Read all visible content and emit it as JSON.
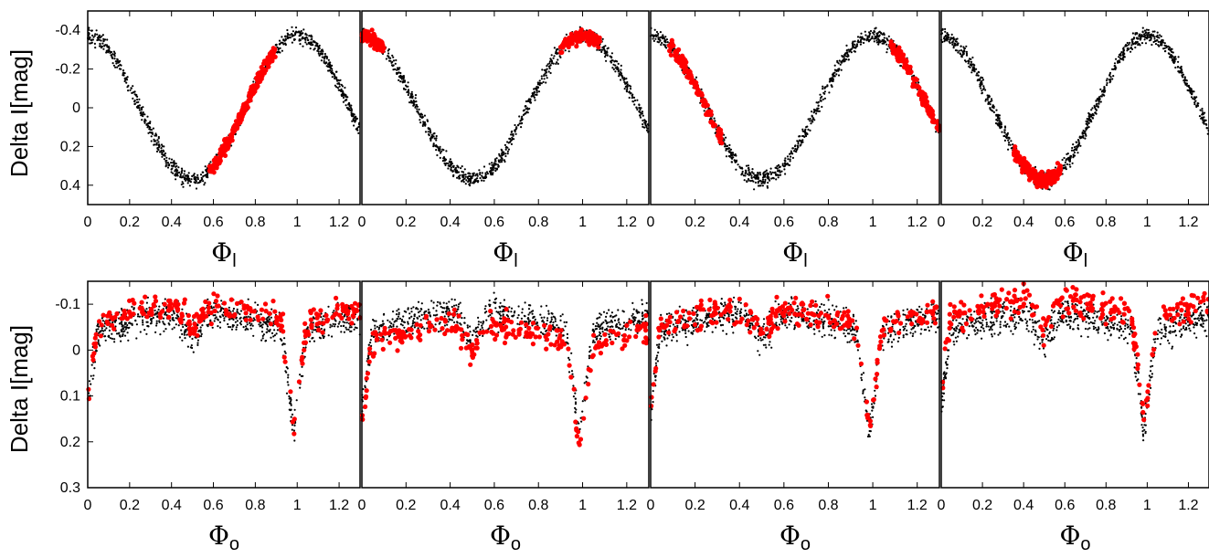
{
  "figure": {
    "rows": [
      {
        "ylabel": "Delta I[mag]",
        "xlabel_symbol": "Φ",
        "xlabel_subscript": "l"
      },
      {
        "ylabel": "Delta I[mag]",
        "xlabel_symbol": "Φ",
        "xlabel_subscript": "o"
      }
    ]
  },
  "colors": {
    "background_points": "#000000",
    "highlight_points": "#ff0000"
  },
  "chart_data": [
    {
      "type": "scatter",
      "row": 0,
      "col": 0,
      "xlabel": "Φl",
      "ylabel": "Delta I[mag]",
      "xlim": [
        0,
        1.3
      ],
      "ylim": [
        0.5,
        -0.5
      ],
      "y_inverted": true,
      "xticks": [
        "0",
        "0.2",
        "0.4",
        "0.6",
        "0.8",
        "1",
        "1.2"
      ],
      "yticks": [
        "-0.4",
        "-0.2",
        "0",
        "0.2",
        "0.4"
      ],
      "series": [
        {
          "model": "sinusoid",
          "amplitude": 0.37,
          "period": 1.0,
          "peak_phase": 1.0,
          "color": "#000000"
        },
        {
          "highlight_range": [
            0.58,
            0.9
          ],
          "color": "#ff0000"
        }
      ]
    },
    {
      "type": "scatter",
      "row": 0,
      "col": 1,
      "xlabel": "Φl",
      "ylabel": "",
      "xlim": [
        0,
        1.3
      ],
      "ylim": [
        0.5,
        -0.5
      ],
      "y_inverted": true,
      "xticks": [
        "0",
        "0.2",
        "0.4",
        "0.6",
        "0.8",
        "1",
        "1.2"
      ],
      "series": [
        {
          "model": "sinusoid",
          "amplitude": 0.37,
          "period": 1.0,
          "peak_phase": 1.0,
          "color": "#000000"
        },
        {
          "highlight_range": [
            [
              0.0,
              0.1
            ],
            [
              0.9,
              1.08
            ]
          ],
          "color": "#ff0000"
        }
      ]
    },
    {
      "type": "scatter",
      "row": 0,
      "col": 2,
      "xlabel": "Φl",
      "ylabel": "",
      "xlim": [
        0,
        1.3
      ],
      "ylim": [
        0.5,
        -0.5
      ],
      "y_inverted": true,
      "xticks": [
        "0",
        "0.2",
        "0.4",
        "0.6",
        "0.8",
        "1",
        "1.2"
      ],
      "series": [
        {
          "model": "sinusoid",
          "amplitude": 0.37,
          "period": 1.0,
          "peak_phase": 1.0,
          "color": "#000000"
        },
        {
          "highlight_range": [
            [
              0.08,
              0.32
            ],
            [
              1.08,
              1.3
            ]
          ],
          "color": "#ff0000"
        }
      ]
    },
    {
      "type": "scatter",
      "row": 0,
      "col": 3,
      "xlabel": "Φl",
      "ylabel": "",
      "xlim": [
        0,
        1.3
      ],
      "ylim": [
        0.5,
        -0.5
      ],
      "y_inverted": true,
      "xticks": [
        "0",
        "0.2",
        "0.4",
        "0.6",
        "0.8",
        "1",
        "1.2"
      ],
      "series": [
        {
          "model": "sinusoid",
          "amplitude": 0.37,
          "period": 1.0,
          "peak_phase": 1.0,
          "color": "#000000"
        },
        {
          "highlight_range": [
            0.35,
            0.58
          ],
          "color": "#ff0000"
        }
      ]
    },
    {
      "type": "scatter",
      "row": 1,
      "col": 0,
      "xlabel": "Φo",
      "ylabel": "Delta I[mag]",
      "xlim": [
        0,
        1.3
      ],
      "ylim": [
        0.3,
        -0.15
      ],
      "y_inverted": true,
      "xticks": [
        "0",
        "0.2",
        "0.4",
        "0.6",
        "0.8",
        "1",
        "1.2"
      ],
      "yticks": [
        "-0.1",
        "0",
        "0.1",
        "0.2",
        "0.3"
      ],
      "series": [
        {
          "model": "eclipsing",
          "color": "#000000"
        },
        {
          "highlight_state": "bright_early",
          "color": "#ff0000"
        }
      ]
    },
    {
      "type": "scatter",
      "row": 1,
      "col": 1,
      "xlabel": "Φo",
      "ylabel": "",
      "xlim": [
        0,
        1.3
      ],
      "ylim": [
        0.3,
        -0.15
      ],
      "y_inverted": true,
      "xticks": [
        "0",
        "0.2",
        "0.4",
        "0.6",
        "0.8",
        "1",
        "1.2"
      ],
      "series": [
        {
          "model": "eclipsing",
          "color": "#000000"
        },
        {
          "highlight_state": "faint",
          "color": "#ff0000"
        }
      ]
    },
    {
      "type": "scatter",
      "row": 1,
      "col": 2,
      "xlabel": "Φo",
      "ylabel": "",
      "xlim": [
        0,
        1.3
      ],
      "ylim": [
        0.3,
        -0.15
      ],
      "y_inverted": true,
      "xticks": [
        "0",
        "0.2",
        "0.4",
        "0.6",
        "0.8",
        "1",
        "1.2"
      ],
      "series": [
        {
          "model": "eclipsing",
          "color": "#000000"
        },
        {
          "highlight_state": "bright_late",
          "color": "#ff0000"
        }
      ]
    },
    {
      "type": "scatter",
      "row": 1,
      "col": 3,
      "xlabel": "Φo",
      "ylabel": "",
      "xlim": [
        0,
        1.3
      ],
      "ylim": [
        0.3,
        -0.15
      ],
      "y_inverted": true,
      "xticks": [
        "0",
        "0.2",
        "0.4",
        "0.6",
        "0.8",
        "1",
        "1.2"
      ],
      "series": [
        {
          "model": "eclipsing",
          "color": "#000000"
        },
        {
          "highlight_state": "bright_mid",
          "color": "#ff0000"
        }
      ]
    }
  ]
}
